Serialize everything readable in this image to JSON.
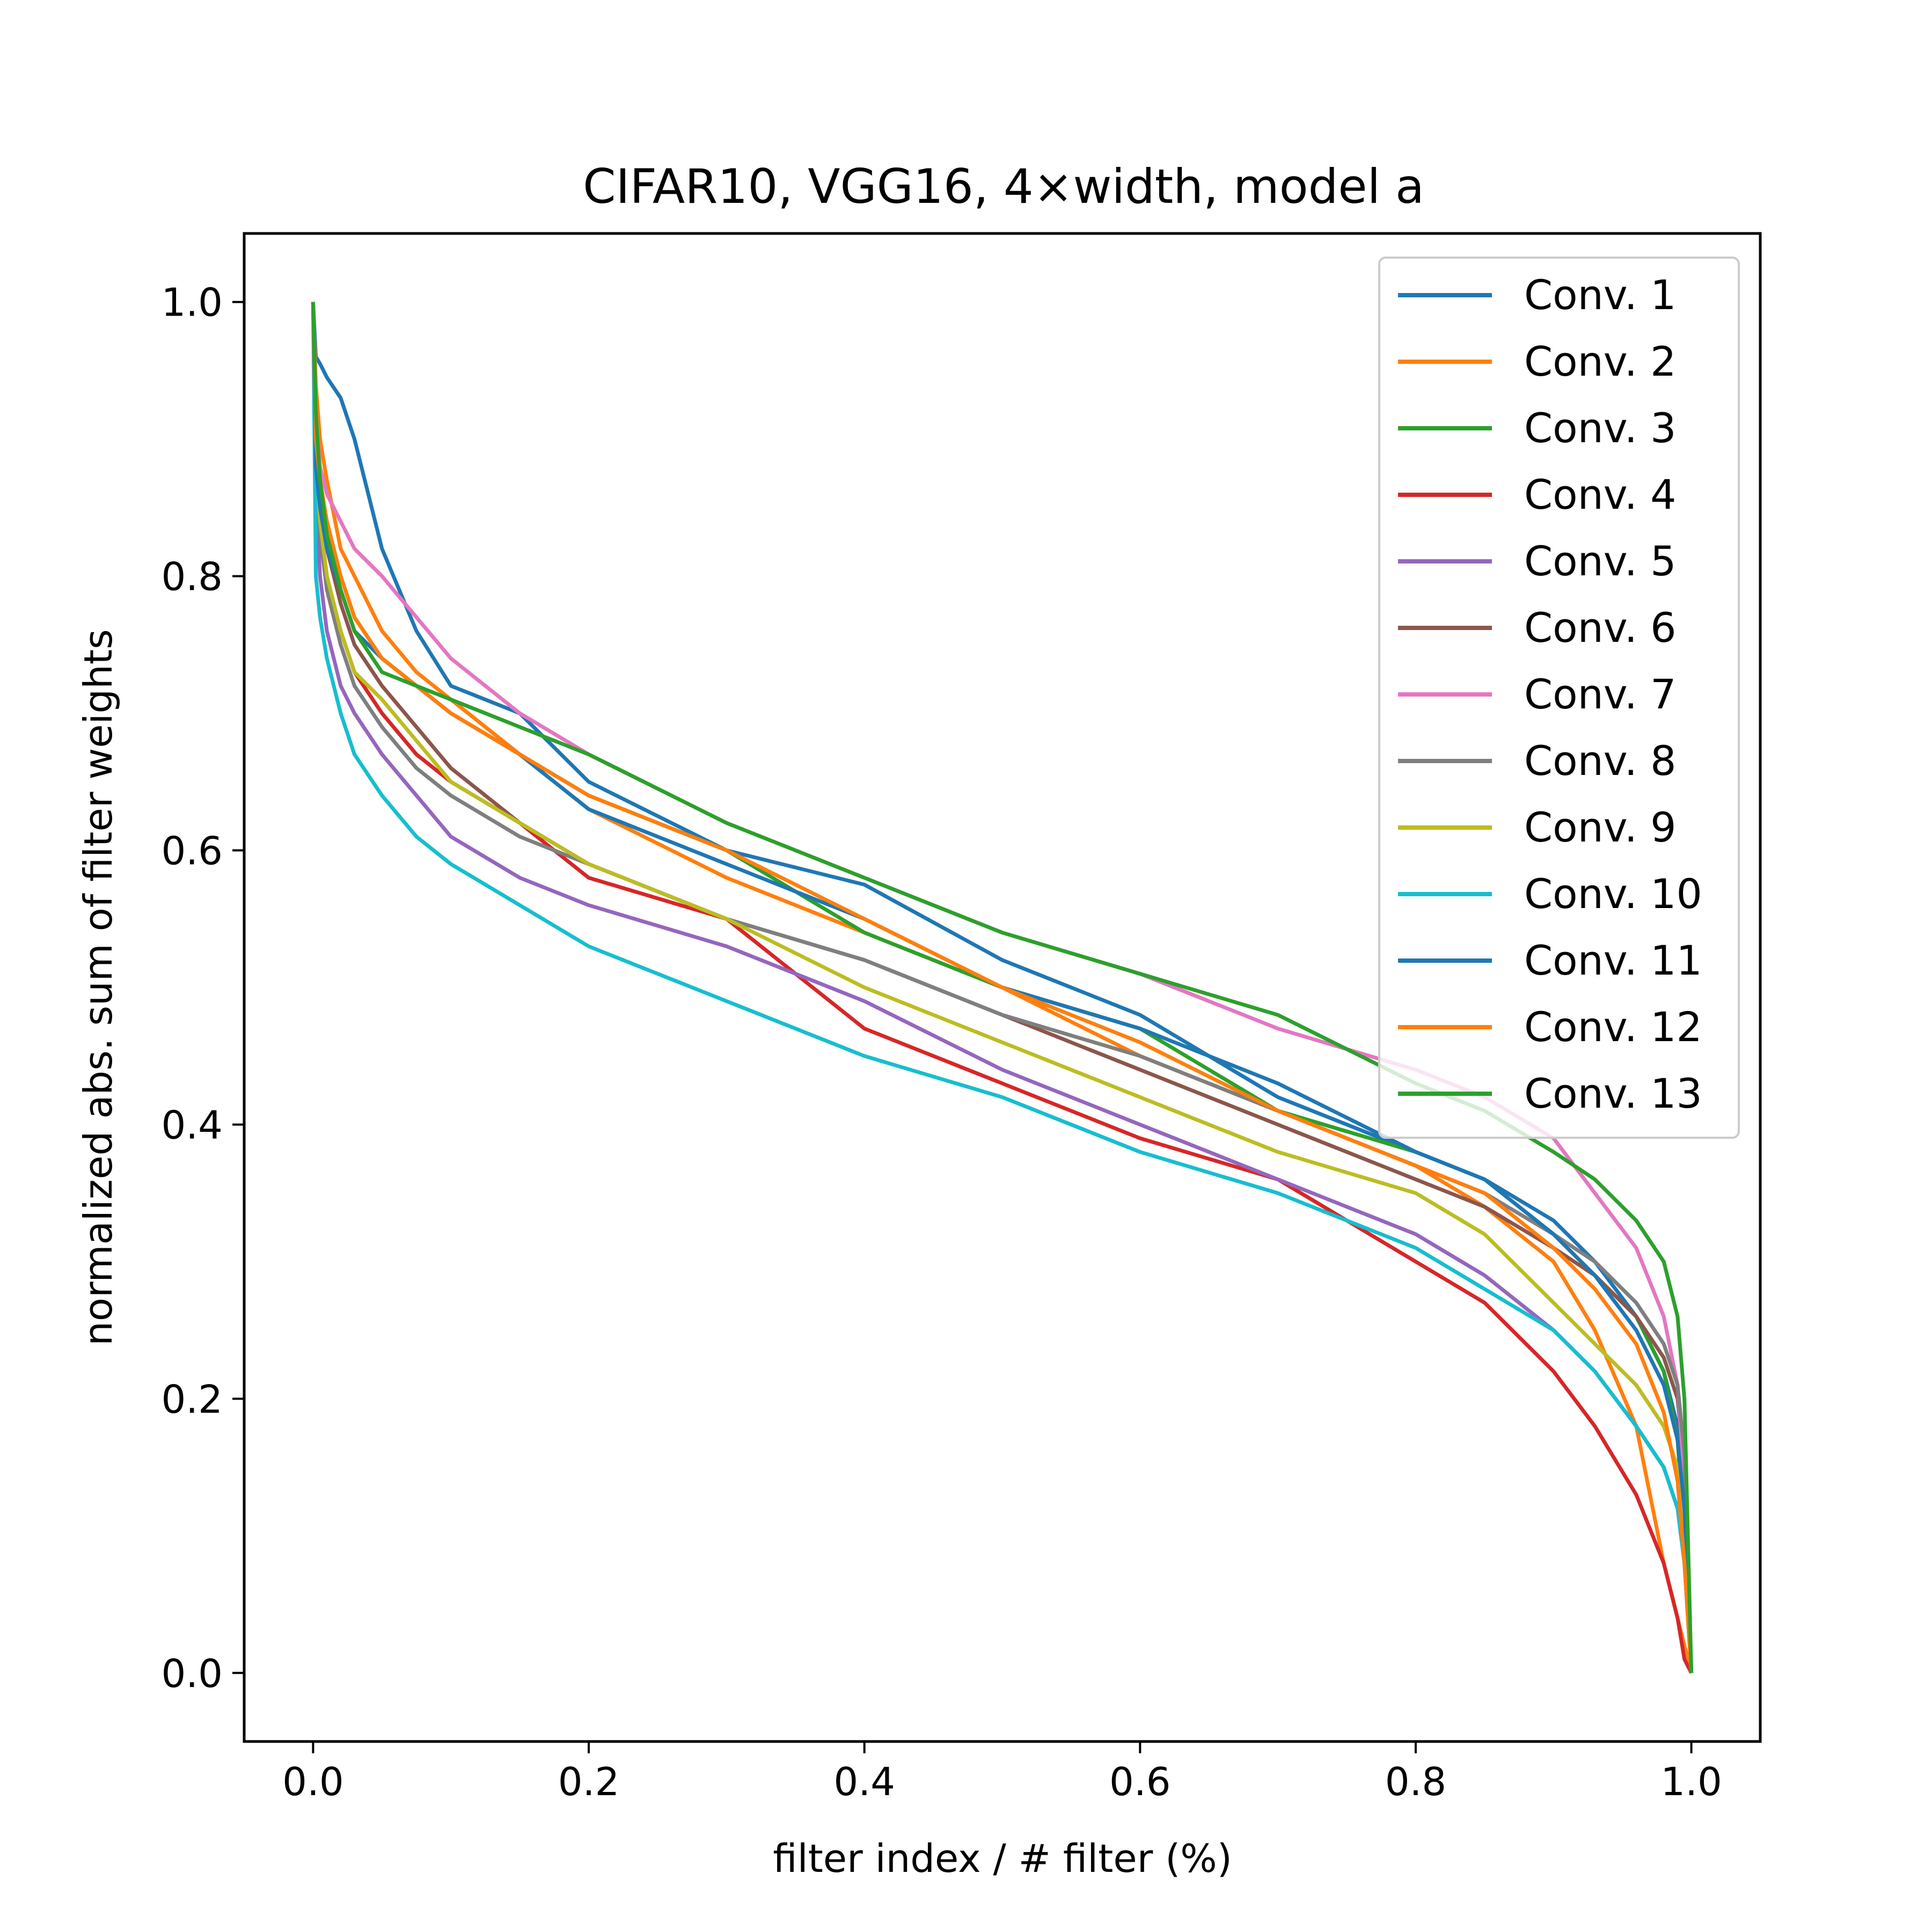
{
  "chart_data": {
    "type": "line",
    "title": "CIFAR10, VGG16, 4×width, model a",
    "xlabel": "filter index / # filter (%)",
    "ylabel": "normalized abs. sum of filter weights",
    "xlim": [
      -0.05,
      1.05
    ],
    "ylim": [
      -0.05,
      1.05
    ],
    "xticks": [
      0.0,
      0.2,
      0.4,
      0.6,
      0.8,
      1.0
    ],
    "xtick_labels": [
      "0.0",
      "0.2",
      "0.4",
      "0.6",
      "0.8",
      "1.0"
    ],
    "yticks": [
      0.0,
      0.2,
      0.4,
      0.6,
      0.8,
      1.0
    ],
    "ytick_labels": [
      "0.0",
      "0.2",
      "0.4",
      "0.6",
      "0.8",
      "1.0"
    ],
    "grid": false,
    "legend_position": "top-right",
    "x": [
      0.0,
      0.002,
      0.005,
      0.01,
      0.02,
      0.03,
      0.05,
      0.075,
      0.1,
      0.15,
      0.2,
      0.3,
      0.4,
      0.5,
      0.6,
      0.7,
      0.8,
      0.85,
      0.9,
      0.93,
      0.96,
      0.98,
      0.99,
      0.995,
      1.0
    ],
    "series": [
      {
        "name": "Conv. 1",
        "color": "#1f77b4",
        "values": [
          1.0,
          0.96,
          0.955,
          0.945,
          0.93,
          0.9,
          0.82,
          0.76,
          0.72,
          0.7,
          0.65,
          0.6,
          0.575,
          0.52,
          0.48,
          0.42,
          0.38,
          0.36,
          0.33,
          0.3,
          0.26,
          0.22,
          0.18,
          0.12,
          0.0
        ]
      },
      {
        "name": "Conv. 2",
        "color": "#ff7f0e",
        "values": [
          1.0,
          0.94,
          0.9,
          0.87,
          0.82,
          0.8,
          0.76,
          0.73,
          0.71,
          0.67,
          0.63,
          0.58,
          0.54,
          0.5,
          0.45,
          0.41,
          0.37,
          0.34,
          0.3,
          0.25,
          0.18,
          0.08,
          0.04,
          0.02,
          0.0
        ]
      },
      {
        "name": "Conv. 3",
        "color": "#2ca02c",
        "values": [
          1.0,
          0.9,
          0.87,
          0.84,
          0.8,
          0.77,
          0.74,
          0.72,
          0.7,
          0.67,
          0.64,
          0.6,
          0.54,
          0.5,
          0.47,
          0.41,
          0.38,
          0.36,
          0.32,
          0.29,
          0.26,
          0.22,
          0.17,
          0.1,
          0.0
        ]
      },
      {
        "name": "Conv. 4",
        "color": "#d62728",
        "values": [
          1.0,
          0.88,
          0.84,
          0.8,
          0.76,
          0.73,
          0.7,
          0.67,
          0.65,
          0.62,
          0.58,
          0.55,
          0.47,
          0.43,
          0.39,
          0.36,
          0.3,
          0.27,
          0.22,
          0.18,
          0.13,
          0.08,
          0.04,
          0.01,
          0.0
        ]
      },
      {
        "name": "Conv. 5",
        "color": "#9467bd",
        "values": [
          1.0,
          0.86,
          0.8,
          0.76,
          0.72,
          0.7,
          0.67,
          0.64,
          0.61,
          0.58,
          0.56,
          0.53,
          0.49,
          0.44,
          0.4,
          0.36,
          0.32,
          0.29,
          0.25,
          0.22,
          0.18,
          0.15,
          0.12,
          0.08,
          0.0
        ]
      },
      {
        "name": "Conv. 6",
        "color": "#8c564b",
        "values": [
          1.0,
          0.9,
          0.86,
          0.82,
          0.78,
          0.75,
          0.72,
          0.69,
          0.66,
          0.62,
          0.59,
          0.55,
          0.52,
          0.48,
          0.44,
          0.4,
          0.36,
          0.34,
          0.31,
          0.29,
          0.26,
          0.23,
          0.2,
          0.15,
          0.0
        ]
      },
      {
        "name": "Conv. 7",
        "color": "#e377c2",
        "values": [
          1.0,
          0.92,
          0.88,
          0.86,
          0.84,
          0.82,
          0.8,
          0.77,
          0.74,
          0.7,
          0.67,
          0.62,
          0.58,
          0.54,
          0.51,
          0.47,
          0.44,
          0.42,
          0.39,
          0.35,
          0.31,
          0.26,
          0.21,
          0.14,
          0.0
        ]
      },
      {
        "name": "Conv. 8",
        "color": "#7f7f7f",
        "values": [
          1.0,
          0.88,
          0.83,
          0.79,
          0.75,
          0.72,
          0.69,
          0.66,
          0.64,
          0.61,
          0.59,
          0.55,
          0.52,
          0.48,
          0.45,
          0.41,
          0.37,
          0.35,
          0.32,
          0.3,
          0.27,
          0.24,
          0.21,
          0.16,
          0.0
        ]
      },
      {
        "name": "Conv. 9",
        "color": "#bcbd22",
        "values": [
          1.0,
          0.88,
          0.84,
          0.8,
          0.76,
          0.73,
          0.71,
          0.68,
          0.65,
          0.62,
          0.59,
          0.55,
          0.5,
          0.46,
          0.42,
          0.38,
          0.35,
          0.32,
          0.27,
          0.24,
          0.21,
          0.18,
          0.15,
          0.1,
          0.0
        ]
      },
      {
        "name": "Conv. 10",
        "color": "#17becf",
        "values": [
          1.0,
          0.8,
          0.77,
          0.74,
          0.7,
          0.67,
          0.64,
          0.61,
          0.59,
          0.56,
          0.53,
          0.49,
          0.45,
          0.42,
          0.38,
          0.35,
          0.31,
          0.28,
          0.25,
          0.22,
          0.18,
          0.15,
          0.12,
          0.08,
          0.0
        ]
      },
      {
        "name": "Conv. 11",
        "color": "#1f77b4",
        "values": [
          1.0,
          0.88,
          0.85,
          0.82,
          0.79,
          0.76,
          0.74,
          0.72,
          0.7,
          0.67,
          0.63,
          0.59,
          0.55,
          0.5,
          0.47,
          0.43,
          0.38,
          0.36,
          0.32,
          0.29,
          0.25,
          0.21,
          0.17,
          0.12,
          0.0
        ]
      },
      {
        "name": "Conv. 12",
        "color": "#ff7f0e",
        "values": [
          1.0,
          0.9,
          0.87,
          0.84,
          0.8,
          0.77,
          0.74,
          0.72,
          0.7,
          0.67,
          0.64,
          0.6,
          0.55,
          0.5,
          0.46,
          0.41,
          0.37,
          0.35,
          0.31,
          0.28,
          0.24,
          0.19,
          0.14,
          0.08,
          0.0
        ]
      },
      {
        "name": "Conv. 13",
        "color": "#2ca02c",
        "values": [
          1.0,
          0.92,
          0.87,
          0.83,
          0.79,
          0.76,
          0.73,
          0.72,
          0.71,
          0.69,
          0.67,
          0.62,
          0.58,
          0.54,
          0.51,
          0.48,
          0.43,
          0.41,
          0.38,
          0.36,
          0.33,
          0.3,
          0.26,
          0.2,
          0.0
        ]
      }
    ]
  }
}
